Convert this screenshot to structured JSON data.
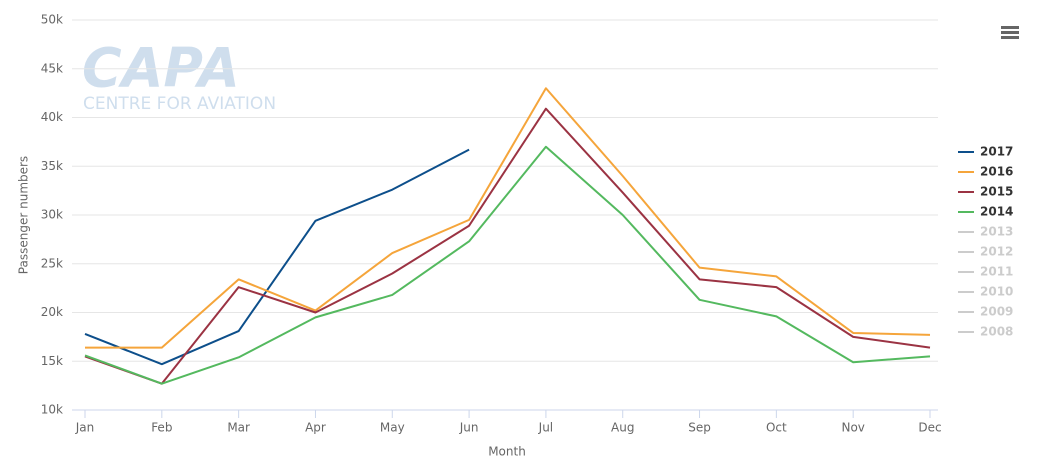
{
  "chart_data": {
    "type": "line",
    "watermark": {
      "logo": "CAPA",
      "subtitle": "CENTRE FOR AVIATION"
    },
    "x_label": "Month",
    "y_label": "Passenger numbers",
    "categories": [
      "Jan",
      "Feb",
      "Mar",
      "Apr",
      "May",
      "Jun",
      "Jul",
      "Aug",
      "Sep",
      "Oct",
      "Nov",
      "Dec"
    ],
    "ylim": [
      10000,
      50000
    ],
    "yticks": [
      {
        "value": 10000,
        "label": "10k"
      },
      {
        "value": 15000,
        "label": "15k"
      },
      {
        "value": 20000,
        "label": "20k"
      },
      {
        "value": 25000,
        "label": "25k"
      },
      {
        "value": 30000,
        "label": "30k"
      },
      {
        "value": 35000,
        "label": "35k"
      },
      {
        "value": 40000,
        "label": "40k"
      },
      {
        "value": 45000,
        "label": "45k"
      },
      {
        "value": 50000,
        "label": "50k"
      }
    ],
    "grid": true,
    "legend": "right",
    "series": [
      {
        "name": "2017",
        "color": "#0d4f8b",
        "values": [
          17800,
          14700,
          18100,
          29400,
          32600,
          36700,
          null,
          null,
          null,
          null,
          null,
          null
        ]
      },
      {
        "name": "2016",
        "color": "#f5a53b",
        "values": [
          16400,
          16400,
          23400,
          20200,
          26100,
          29500,
          43000,
          34000,
          24600,
          23700,
          17900,
          17700
        ]
      },
      {
        "name": "2015",
        "color": "#9b3343",
        "values": [
          15500,
          12700,
          22600,
          20000,
          24000,
          28900,
          40900,
          32300,
          23400,
          22600,
          17500,
          16400
        ]
      },
      {
        "name": "2014",
        "color": "#54b95f",
        "values": [
          15600,
          12700,
          15400,
          19500,
          21800,
          27300,
          37000,
          30000,
          21300,
          19600,
          14900,
          15500
        ]
      },
      {
        "name": "2013",
        "color": "#cccccc",
        "visible": false
      },
      {
        "name": "2012",
        "color": "#cccccc",
        "visible": false
      },
      {
        "name": "2011",
        "color": "#cccccc",
        "visible": false
      },
      {
        "name": "2010",
        "color": "#cccccc",
        "visible": false
      },
      {
        "name": "2009",
        "color": "#cccccc",
        "visible": false
      },
      {
        "name": "2008",
        "color": "#cccccc",
        "visible": false
      }
    ]
  }
}
